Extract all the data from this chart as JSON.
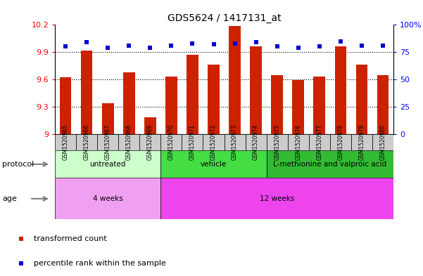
{
  "title": "GDS5624 / 1417131_at",
  "samples": [
    "GSM1520965",
    "GSM1520966",
    "GSM1520967",
    "GSM1520968",
    "GSM1520969",
    "GSM1520970",
    "GSM1520971",
    "GSM1520972",
    "GSM1520973",
    "GSM1520974",
    "GSM1520975",
    "GSM1520976",
    "GSM1520977",
    "GSM1520978",
    "GSM1520979",
    "GSM1520980"
  ],
  "bar_values": [
    9.62,
    9.92,
    9.34,
    9.68,
    9.18,
    9.63,
    9.87,
    9.76,
    10.19,
    9.96,
    9.65,
    9.59,
    9.63,
    9.96,
    9.76,
    9.65
  ],
  "dot_values_pct": [
    80,
    84,
    79,
    81,
    79,
    81,
    83,
    82,
    83,
    84,
    80,
    79,
    80,
    85,
    81,
    81
  ],
  "ylim_left": [
    9.0,
    10.2
  ],
  "ylim_right": [
    0,
    100
  ],
  "yticks_left": [
    9.0,
    9.3,
    9.6,
    9.9,
    10.2
  ],
  "ytick_labels_left": [
    "9",
    "9.3",
    "9.6",
    "9.9",
    "10.2"
  ],
  "yticks_right": [
    0,
    25,
    50,
    75,
    100
  ],
  "ytick_labels_right": [
    "0",
    "25",
    "50",
    "75",
    "100%"
  ],
  "hgrid_ticks": [
    9.3,
    9.6,
    9.9
  ],
  "bar_color": "#cc2200",
  "dot_color": "#0000cc",
  "protocol_groups": [
    {
      "label": "untreated",
      "start": 0,
      "end": 4,
      "color": "#ccffcc"
    },
    {
      "label": "vehicle",
      "start": 5,
      "end": 9,
      "color": "#44dd44"
    },
    {
      "label": "L-methionine and valproic acid",
      "start": 10,
      "end": 15,
      "color": "#33bb33"
    }
  ],
  "age_groups": [
    {
      "label": "4 weeks",
      "start": 0,
      "end": 4,
      "color": "#f0a0f0"
    },
    {
      "label": "12 weeks",
      "start": 5,
      "end": 15,
      "color": "#ee44ee"
    }
  ],
  "legend_bar_label": "transformed count",
  "legend_dot_label": "percentile rank within the sample",
  "label_protocol": "protocol",
  "label_age": "age",
  "xticklabel_bg": "#cccccc",
  "spine_color": "#000000"
}
